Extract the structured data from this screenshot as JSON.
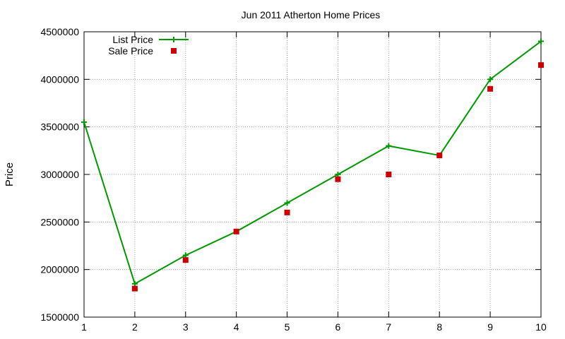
{
  "chart_data": {
    "type": "line",
    "title": "Jun 2011 Atherton Home Prices",
    "xlabel": "",
    "ylabel": "Price",
    "x": [
      1,
      2,
      3,
      4,
      5,
      6,
      7,
      8,
      9,
      10
    ],
    "xlim": [
      1,
      10
    ],
    "ylim": [
      1500000,
      4500000
    ],
    "xticks": [
      1,
      2,
      3,
      4,
      5,
      6,
      7,
      8,
      9,
      10
    ],
    "yticks": [
      1500000,
      2000000,
      2500000,
      3000000,
      3500000,
      4000000,
      4500000
    ],
    "grid": true,
    "legend_position": "top-left",
    "series": [
      {
        "name": "List Price",
        "style": "line-with-plus-markers",
        "color": "#009900",
        "values": [
          3550000,
          1850000,
          2150000,
          2400000,
          2700000,
          3000000,
          3300000,
          3200000,
          4000000,
          4400000
        ]
      },
      {
        "name": "Sale Price",
        "style": "square-markers",
        "color": "#cc0000",
        "values": [
          null,
          1800000,
          2100000,
          2400000,
          2600000,
          2950000,
          3000000,
          3200000,
          3900000,
          4150000
        ]
      }
    ]
  }
}
